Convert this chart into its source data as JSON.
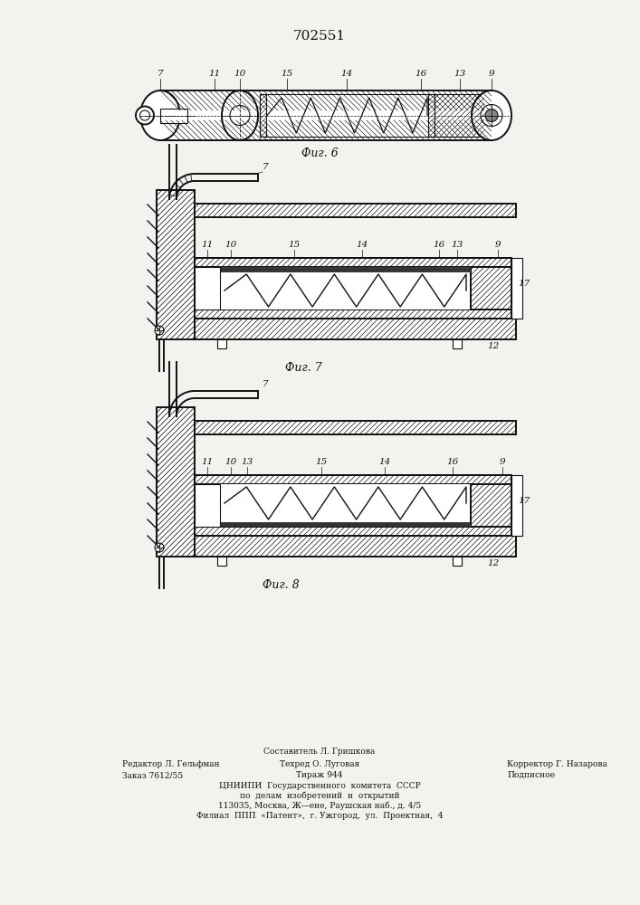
{
  "title": "702551",
  "title_fontsize": 11,
  "bg": "#f2f2ee",
  "lc": "#111111",
  "fig6_caption": "Фиг. 6",
  "fig7_caption": "Фиг. 7",
  "fig8_caption": "Фиг. 8",
  "footer": {
    "row0": "Составитель Л. Гришкова",
    "col0_r1": "Редактор Л. Гельфман",
    "col1_r1": "Техред О. Луговая",
    "col2_r1": "Корректор Г. Назарова",
    "col0_r2": "Заказ 7612/55",
    "col1_r2": "Тираж 944",
    "col2_r2": "Подписное",
    "line3": "ЦНИИПИ  Государственного  комитета  СССР",
    "line4": "по  делам  изобретений  и  открытий",
    "line5": "113035, Москва, Ж—ене, Раушская наб., д. 4/5",
    "line6": "Филиал  ППП  «Патент»,  г. Ужгород,  ул.  Проектная,  4"
  }
}
